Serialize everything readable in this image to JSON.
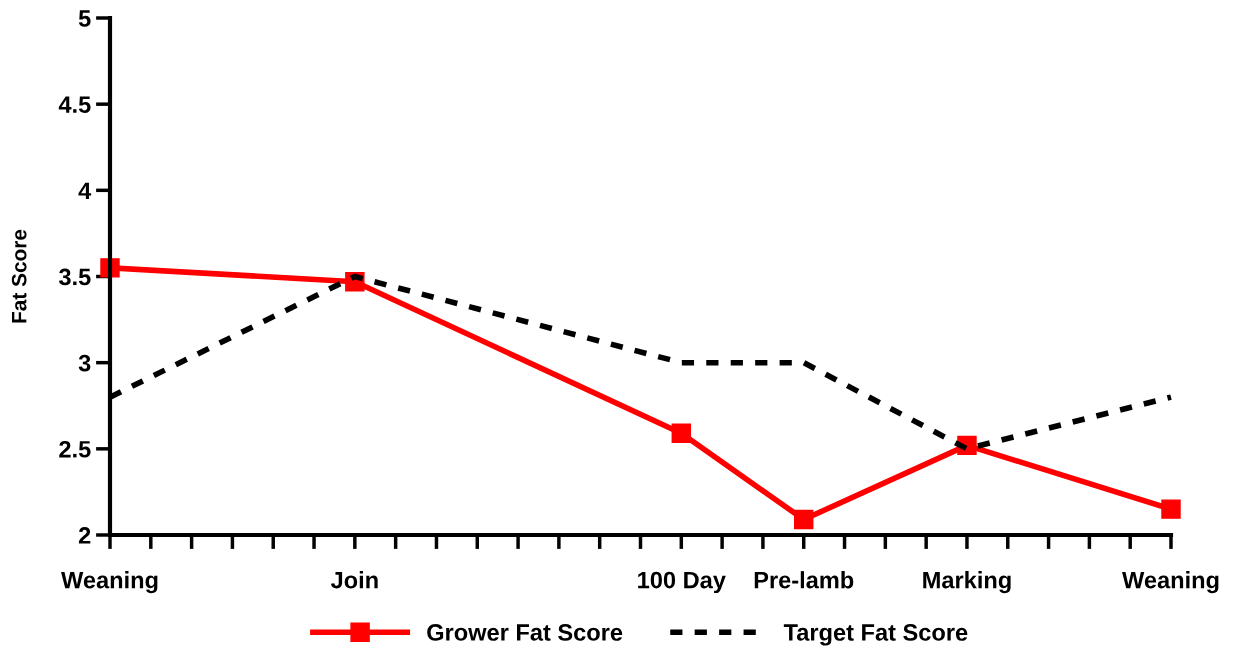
{
  "chart_data": {
    "type": "line",
    "ylabel": "Fat Score",
    "categories": [
      "Weaning",
      null,
      null,
      null,
      null,
      null,
      "Join",
      null,
      null,
      null,
      null,
      null,
      null,
      null,
      "100 Day",
      null,
      null,
      "Pre-lamb",
      null,
      null,
      null,
      "Marking",
      null,
      null,
      null,
      null,
      "Weaning"
    ],
    "series": [
      {
        "name": "Grower Fat Score",
        "color": "#ff0000",
        "values": [
          3.55,
          null,
          null,
          null,
          null,
          null,
          3.47,
          null,
          null,
          null,
          null,
          null,
          null,
          null,
          2.59,
          null,
          null,
          2.09,
          null,
          null,
          null,
          2.52,
          null,
          null,
          null,
          null,
          2.15
        ],
        "marker": "square",
        "line_style": "solid"
      },
      {
        "name": "Target Fat Score",
        "color": "#000000",
        "values": [
          2.8,
          null,
          null,
          null,
          null,
          null,
          3.5,
          null,
          null,
          null,
          null,
          null,
          null,
          null,
          3.0,
          null,
          null,
          3.0,
          null,
          null,
          null,
          2.5,
          null,
          null,
          null,
          null,
          2.8
        ],
        "marker": "none",
        "line_style": "dashed"
      }
    ],
    "ylim": [
      2,
      5
    ],
    "yticks": [
      2,
      2.5,
      3,
      3.5,
      4,
      4.5,
      5
    ],
    "grid": false,
    "legend": "bottom"
  }
}
